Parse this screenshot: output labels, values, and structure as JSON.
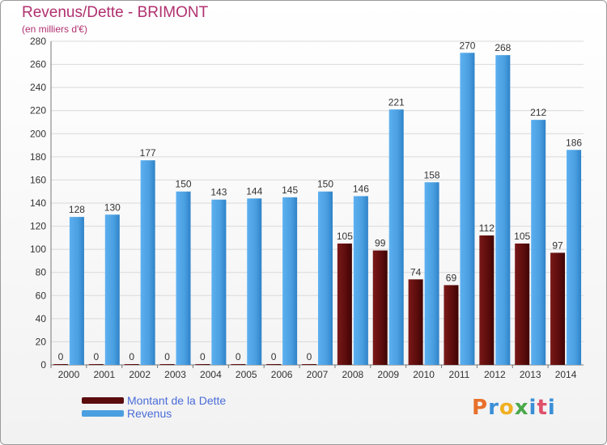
{
  "chart_data": {
    "type": "bar",
    "title": "Revenus/Dette - BRIMONT",
    "subtitle": "(en milliers d'€)",
    "categories": [
      "2000",
      "2001",
      "2002",
      "2003",
      "2004",
      "2005",
      "2006",
      "2007",
      "2008",
      "2009",
      "2010",
      "2011",
      "2012",
      "2013",
      "2014"
    ],
    "series": [
      {
        "name": "Montant de la Dette",
        "color": "#5b0c0c",
        "values": [
          0,
          0,
          0,
          0,
          0,
          0,
          0,
          0,
          105,
          99,
          74,
          69,
          112,
          105,
          97
        ]
      },
      {
        "name": "Revenus",
        "color": "#4a9fe0",
        "values": [
          128,
          130,
          177,
          150,
          143,
          144,
          145,
          150,
          146,
          221,
          158,
          270,
          268,
          212,
          186
        ]
      }
    ],
    "ylim": [
      0,
      280
    ],
    "yticks": [
      0,
      20,
      40,
      60,
      80,
      100,
      120,
      140,
      160,
      180,
      200,
      220,
      240,
      260,
      280
    ],
    "grid": true,
    "legend_position": "bottom-left"
  },
  "logo": {
    "text": "Proxiti",
    "colors": [
      "#e8702a",
      "#3a8fd8",
      "#f0b020",
      "#4aa84a",
      "#3a8fd8",
      "#e0506a",
      "#3a8fd8"
    ]
  }
}
